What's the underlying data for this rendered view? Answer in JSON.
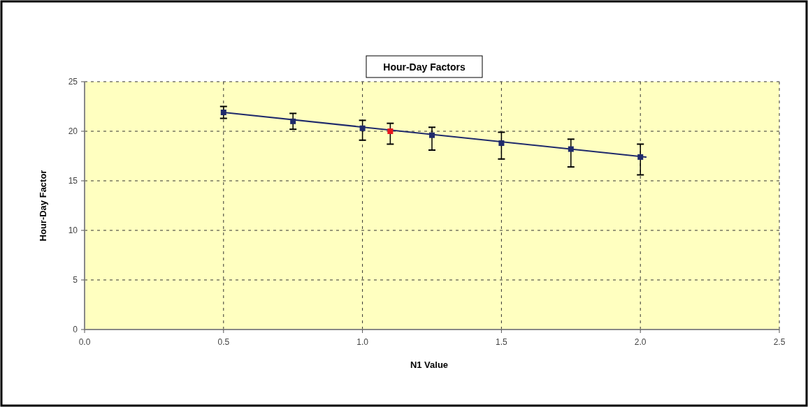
{
  "chart_data": {
    "type": "scatter",
    "title": "Hour-Day Factors",
    "xlabel": "N1 Value",
    "ylabel": "Hour-Day Factor",
    "xlim": [
      0,
      2.5
    ],
    "xticks": [
      {
        "value": 0,
        "label": "0.0"
      },
      {
        "value": 0.5,
        "label": "0.5"
      },
      {
        "value": 1,
        "label": "1.0"
      },
      {
        "value": 1.5,
        "label": "1.5"
      },
      {
        "value": 2,
        "label": "2.0"
      },
      {
        "value": 2.5,
        "label": "2.5"
      }
    ],
    "ylim": [
      0,
      25
    ],
    "yticks": [
      0,
      5,
      10,
      15,
      20,
      25
    ],
    "grid": true,
    "marker": "square",
    "series": [
      {
        "type": "line",
        "marker": "none",
        "color": "#1f2a6b",
        "x": [
          0.5,
          2.02
        ],
        "values": [
          21.9,
          17.4
        ]
      },
      {
        "color": "#1f2a6b",
        "x": [
          0.5,
          0.75,
          1.0,
          1.25,
          1.5,
          1.75,
          2.0
        ],
        "values": [
          21.9,
          21.0,
          20.3,
          19.6,
          18.8,
          18.2,
          17.4
        ],
        "errors": [
          [
            21.3,
            22.5
          ],
          [
            20.2,
            21.8
          ],
          [
            19.1,
            21.1
          ],
          [
            18.1,
            20.4
          ],
          [
            17.2,
            19.9
          ],
          [
            16.4,
            19.2
          ],
          [
            15.6,
            18.7
          ]
        ]
      },
      {
        "color": "#e8141e",
        "x": [
          1.1
        ],
        "values": [
          20.0
        ],
        "errors": [
          [
            18.7,
            20.8
          ]
        ]
      }
    ]
  }
}
